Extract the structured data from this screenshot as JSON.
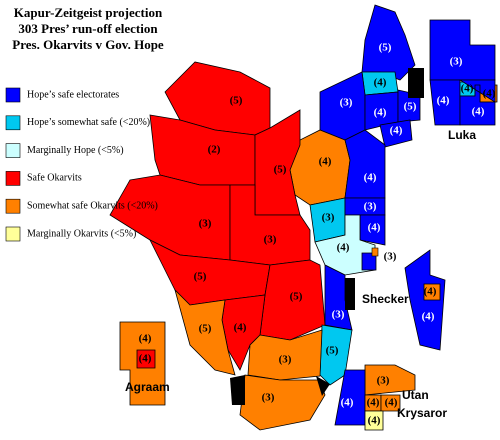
{
  "title": [
    "Kapur-Zeitgeist projection",
    "303 Pres’ run-off election",
    "Pres. Okarvits v Gov. Hope"
  ],
  "legend": [
    {
      "label": "Hope’s safe electorates",
      "color": "#0000ff"
    },
    {
      "label": "Hope’s somewhat safe (<20%)",
      "color": "#00c8f0"
    },
    {
      "label": "Marginally Hope (<5%)",
      "color": "#ccffff"
    },
    {
      "label": "Safe Okarvits",
      "color": "#ff0000"
    },
    {
      "label": "Somewhat safe Okarvits (<20%)",
      "color": "#ff8000"
    },
    {
      "label": "Marginally Okarvits  (<5%)",
      "color": "#ffff99"
    }
  ],
  "places": [
    "Luka",
    "Shecker",
    "Agraam",
    "Utan",
    "Krysaror"
  ],
  "regions": [
    {
      "label": "(5)",
      "color": "#0000ff"
    },
    {
      "label": "(4)",
      "color": "#00c8f0"
    },
    {
      "label": "(3)",
      "color": "#0000ff"
    },
    {
      "label": "(4)",
      "color": "#0000ff"
    },
    {
      "label": "(5)",
      "color": "#0000ff"
    },
    {
      "label": "(4)",
      "color": "#0000ff"
    },
    {
      "label": "(4)",
      "color": "#ff8000"
    },
    {
      "label": "(4)",
      "color": "#0000ff"
    },
    {
      "label": "(3)",
      "color": "#00c8f0"
    },
    {
      "label": "(3)",
      "color": "#0000ff"
    },
    {
      "label": "(4)",
      "color": "#0000ff"
    },
    {
      "label": "(4)",
      "color": "#ccffff"
    },
    {
      "label": "(3)",
      "color": "#0000ff"
    },
    {
      "label": "(5)",
      "color": "#ff0000"
    },
    {
      "label": "(2)",
      "color": "#ff0000"
    },
    {
      "label": "(5)",
      "color": "#ff0000"
    },
    {
      "label": "(3)",
      "color": "#ff0000"
    },
    {
      "label": "(3)",
      "color": "#ff0000"
    },
    {
      "label": "(5)",
      "color": "#ff0000"
    },
    {
      "label": "(5)",
      "color": "#ff0000"
    },
    {
      "label": "(4)",
      "color": "#ff0000"
    },
    {
      "label": "(5)",
      "color": "#ff8000"
    },
    {
      "label": "(3)",
      "color": "#0000ff"
    },
    {
      "label": "(5)",
      "color": "#00c8f0"
    },
    {
      "label": "(3)",
      "color": "#ff8000"
    },
    {
      "label": "(3)",
      "color": "#ff8000"
    },
    {
      "label": "(3)",
      "color": "#0000ff"
    },
    {
      "label": "(4)",
      "color": "#0000ff"
    },
    {
      "label": "(4)",
      "color": "#00c8f0"
    },
    {
      "label": "(4)",
      "color": "#ff8000"
    },
    {
      "label": "(4)",
      "color": "#0000ff"
    },
    {
      "label": "(4)",
      "color": "#0000ff"
    },
    {
      "label": "(4)",
      "color": "#ff8000"
    },
    {
      "label": "(4)",
      "color": "#ff8000"
    },
    {
      "label": "(4)",
      "color": "#ff0000"
    },
    {
      "label": "(3)",
      "color": "#ff8000"
    },
    {
      "label": "(4)",
      "color": "#0000ff"
    },
    {
      "label": "(4)",
      "color": "#ff8000"
    },
    {
      "label": "(4)",
      "color": "#ff8000"
    },
    {
      "label": "(4)",
      "color": "#ffff99"
    }
  ]
}
